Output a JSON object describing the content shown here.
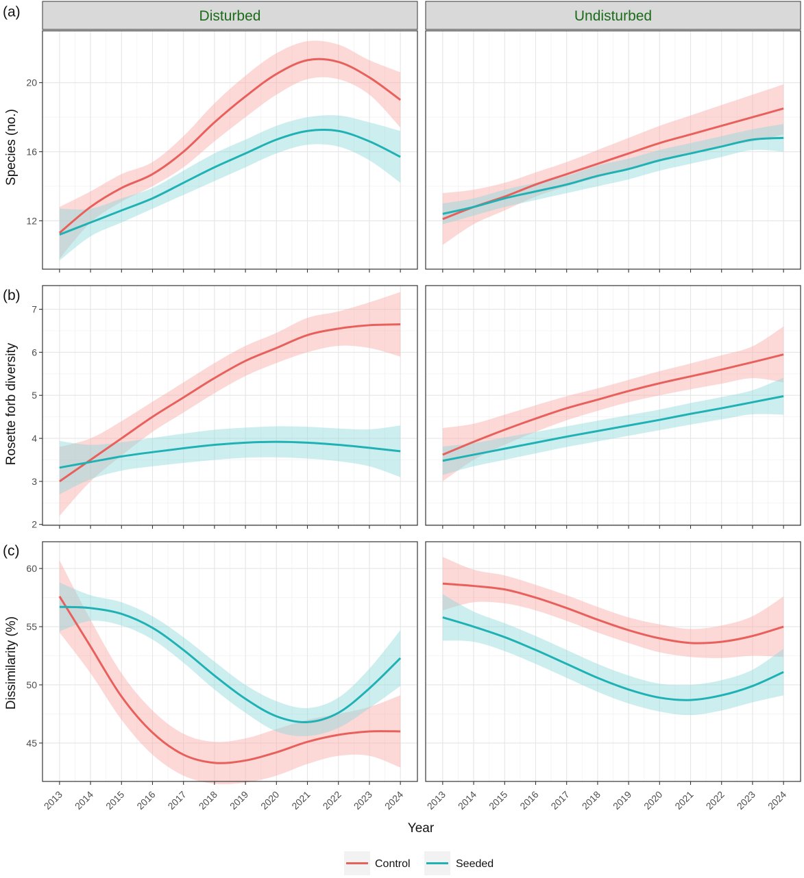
{
  "facets": [
    "Disturbed",
    "Undisturbed"
  ],
  "xlabel": "Year",
  "legend": {
    "placement": "bottom",
    "items": [
      {
        "name": "Control",
        "color": "#E8605C"
      },
      {
        "name": "Seeded",
        "color": "#1FB1B4"
      }
    ]
  },
  "colors": {
    "control_line": "#E8605C",
    "control_band": "#F8A9A6",
    "seeded_line": "#1FB1B4",
    "seeded_band": "#8FDADB",
    "strip_bg": "#D9D9D9",
    "strip_text": "#1A6B1A",
    "grid": "#E5E5E5"
  },
  "chart_data": [
    {
      "type": "line",
      "tag": "(a)",
      "ylabel": "Species (no.)",
      "x": [
        2013,
        2014,
        2015,
        2016,
        2017,
        2018,
        2019,
        2020,
        2021,
        2022,
        2023,
        2024
      ],
      "xlim": [
        2012.45,
        2024.55
      ],
      "ylim": [
        9.2,
        23.0
      ],
      "yticks": [
        12,
        16,
        20
      ],
      "grid": true,
      "panels": [
        {
          "facet": "Disturbed",
          "series": [
            {
              "name": "Control",
              "values": [
                11.3,
                12.8,
                13.9,
                14.7,
                16.0,
                17.7,
                19.2,
                20.5,
                21.3,
                21.2,
                20.3,
                19.0
              ],
              "lower": [
                9.8,
                11.9,
                13.1,
                14.0,
                15.1,
                16.6,
                18.0,
                19.3,
                20.2,
                20.2,
                19.3,
                17.4
              ],
              "upper": [
                12.8,
                13.7,
                14.7,
                15.4,
                16.9,
                18.8,
                20.4,
                21.7,
                22.4,
                22.2,
                21.3,
                20.6
              ]
            },
            {
              "name": "Seeded",
              "values": [
                11.2,
                11.9,
                12.6,
                13.3,
                14.2,
                15.1,
                15.9,
                16.7,
                17.2,
                17.2,
                16.6,
                15.7
              ],
              "lower": [
                9.7,
                11.1,
                11.9,
                12.7,
                13.5,
                14.3,
                15.1,
                15.9,
                16.4,
                16.3,
                15.5,
                14.2
              ],
              "upper": [
                12.7,
                12.7,
                13.3,
                13.9,
                14.9,
                15.9,
                16.7,
                17.5,
                18.0,
                18.1,
                17.7,
                17.2
              ]
            }
          ]
        },
        {
          "facet": "Undisturbed",
          "series": [
            {
              "name": "Control",
              "values": [
                12.1,
                12.8,
                13.4,
                14.1,
                14.7,
                15.3,
                15.9,
                16.5,
                17.0,
                17.5,
                18.0,
                18.5
              ],
              "lower": [
                10.6,
                11.8,
                12.6,
                13.4,
                14.0,
                14.5,
                15.0,
                15.5,
                15.9,
                16.3,
                16.6,
                17.0
              ],
              "upper": [
                13.6,
                13.8,
                14.2,
                14.8,
                15.4,
                16.1,
                16.8,
                17.5,
                18.1,
                18.7,
                19.3,
                19.9
              ]
            },
            {
              "name": "Seeded",
              "values": [
                12.4,
                12.8,
                13.3,
                13.7,
                14.1,
                14.6,
                15.0,
                15.5,
                15.9,
                16.3,
                16.7,
                16.8
              ],
              "lower": [
                11.8,
                12.3,
                12.8,
                13.2,
                13.6,
                14.0,
                14.4,
                14.9,
                15.3,
                15.7,
                16.1,
                16.0
              ],
              "upper": [
                13.0,
                13.3,
                13.8,
                14.2,
                14.6,
                15.2,
                15.6,
                16.1,
                16.5,
                16.9,
                17.3,
                17.6
              ]
            }
          ]
        }
      ]
    },
    {
      "type": "line",
      "tag": "(b)",
      "ylabel": "Rosette forb diversity",
      "x": [
        2013,
        2014,
        2015,
        2016,
        2017,
        2018,
        2019,
        2020,
        2021,
        2022,
        2023,
        2024
      ],
      "xlim": [
        2012.45,
        2024.55
      ],
      "ylim": [
        1.98,
        7.55
      ],
      "yticks": [
        2,
        3,
        4,
        5,
        6,
        7
      ],
      "grid": true,
      "panels": [
        {
          "facet": "Disturbed",
          "series": [
            {
              "name": "Control",
              "values": [
                3.0,
                3.5,
                4.0,
                4.5,
                4.95,
                5.4,
                5.8,
                6.1,
                6.4,
                6.55,
                6.63,
                6.65
              ],
              "lower": [
                2.2,
                3.0,
                3.6,
                4.15,
                4.6,
                5.05,
                5.45,
                5.75,
                6.0,
                6.15,
                6.1,
                5.9
              ],
              "upper": [
                3.8,
                4.0,
                4.4,
                4.85,
                5.3,
                5.75,
                6.15,
                6.45,
                6.8,
                6.95,
                7.16,
                7.4
              ]
            },
            {
              "name": "Seeded",
              "values": [
                3.32,
                3.45,
                3.58,
                3.68,
                3.77,
                3.85,
                3.9,
                3.92,
                3.9,
                3.85,
                3.78,
                3.7
              ],
              "lower": [
                2.7,
                3.05,
                3.25,
                3.35,
                3.43,
                3.5,
                3.55,
                3.56,
                3.53,
                3.47,
                3.35,
                3.1
              ],
              "upper": [
                3.94,
                3.85,
                3.91,
                4.01,
                4.11,
                4.2,
                4.25,
                4.28,
                4.27,
                4.23,
                4.21,
                4.3
              ]
            }
          ]
        },
        {
          "facet": "Undisturbed",
          "series": [
            {
              "name": "Control",
              "values": [
                3.62,
                3.92,
                4.2,
                4.46,
                4.7,
                4.9,
                5.1,
                5.28,
                5.44,
                5.6,
                5.77,
                5.95
              ],
              "lower": [
                3.0,
                3.5,
                3.85,
                4.15,
                4.42,
                4.64,
                4.84,
                5.0,
                5.14,
                5.27,
                5.4,
                5.3
              ],
              "upper": [
                4.24,
                4.34,
                4.55,
                4.77,
                4.98,
                5.16,
                5.36,
                5.56,
                5.74,
                5.93,
                6.14,
                6.6
              ]
            },
            {
              "name": "Seeded",
              "values": [
                3.48,
                3.62,
                3.76,
                3.9,
                4.04,
                4.17,
                4.3,
                4.43,
                4.57,
                4.7,
                4.84,
                4.98
              ],
              "lower": [
                3.15,
                3.35,
                3.5,
                3.65,
                3.8,
                3.93,
                4.06,
                4.19,
                4.32,
                4.44,
                4.56,
                4.55
              ],
              "upper": [
                3.81,
                3.89,
                4.02,
                4.15,
                4.28,
                4.41,
                4.54,
                4.67,
                4.82,
                4.96,
                5.12,
                5.41
              ]
            }
          ]
        }
      ]
    },
    {
      "type": "line",
      "tag": "(c)",
      "ylabel": "Dissimilarity (%)",
      "x": [
        2013,
        2014,
        2015,
        2016,
        2017,
        2018,
        2019,
        2020,
        2021,
        2022,
        2023,
        2024
      ],
      "xlim": [
        2012.45,
        2024.55
      ],
      "ylim": [
        41.7,
        62.3
      ],
      "yticks": [
        45,
        50,
        55,
        60
      ],
      "grid": true,
      "panels": [
        {
          "facet": "Disturbed",
          "series": [
            {
              "name": "Control",
              "values": [
                57.6,
                53.3,
                49.0,
                45.9,
                44.0,
                43.3,
                43.5,
                44.2,
                45.1,
                45.7,
                46.0,
                46.0
              ],
              "lower": [
                54.5,
                51.0,
                47.0,
                44.0,
                42.2,
                41.5,
                41.6,
                42.2,
                43.2,
                43.9,
                43.9,
                42.9
              ],
              "upper": [
                60.7,
                55.6,
                51.0,
                47.8,
                45.8,
                45.1,
                45.4,
                46.2,
                47.0,
                47.5,
                48.1,
                49.1
              ]
            },
            {
              "name": "Seeded",
              "values": [
                56.7,
                56.6,
                56.1,
                54.9,
                53.0,
                50.8,
                48.8,
                47.3,
                46.8,
                47.6,
                49.7,
                52.3
              ],
              "lower": [
                54.6,
                55.5,
                55.1,
                53.9,
                51.9,
                49.6,
                47.6,
                46.0,
                45.6,
                46.3,
                48.0,
                49.9
              ],
              "upper": [
                58.8,
                57.7,
                57.1,
                55.9,
                54.1,
                52.0,
                50.0,
                48.6,
                48.0,
                48.9,
                51.4,
                54.7
              ]
            }
          ]
        },
        {
          "facet": "Undisturbed",
          "series": [
            {
              "name": "Control",
              "values": [
                58.7,
                58.5,
                58.2,
                57.5,
                56.6,
                55.6,
                54.7,
                54.0,
                53.6,
                53.7,
                54.2,
                55.0
              ],
              "lower": [
                56.4,
                57.1,
                57.0,
                56.4,
                55.5,
                54.5,
                53.6,
                52.8,
                52.4,
                52.3,
                52.5,
                52.4
              ],
              "upper": [
                61.0,
                59.9,
                59.4,
                58.6,
                57.7,
                56.7,
                55.8,
                55.2,
                54.8,
                55.1,
                55.9,
                57.6
              ]
            },
            {
              "name": "Seeded",
              "values": [
                55.8,
                55.0,
                54.1,
                53.0,
                51.8,
                50.6,
                49.6,
                48.9,
                48.7,
                49.1,
                49.9,
                51.1
              ],
              "lower": [
                53.8,
                53.7,
                52.9,
                51.8,
                50.6,
                49.4,
                48.4,
                47.7,
                47.4,
                47.8,
                48.5,
                49.1
              ],
              "upper": [
                57.8,
                56.3,
                55.3,
                54.2,
                53.0,
                51.8,
                50.8,
                50.1,
                50.0,
                50.4,
                51.3,
                53.1
              ]
            }
          ]
        }
      ]
    }
  ]
}
